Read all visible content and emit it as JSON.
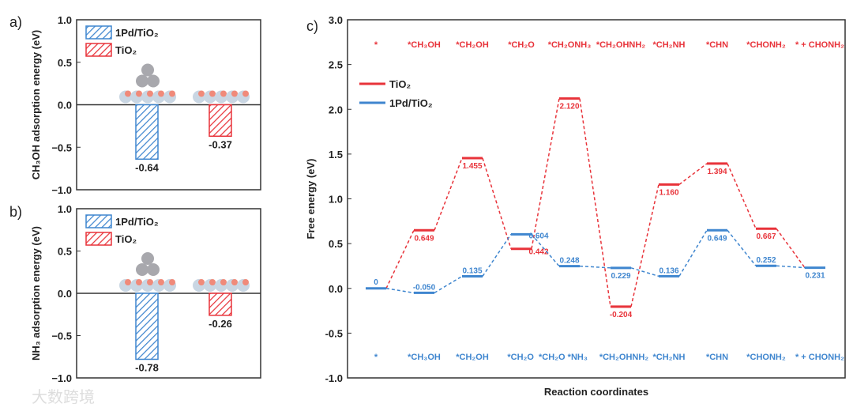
{
  "chart_data": [
    {
      "type": "bar",
      "panel": "a)",
      "ylabel": "CH₃OH adsorption energy (eV)",
      "ylim": [
        -1.0,
        1.0
      ],
      "yticks": [
        "1.0",
        "0.5",
        "0.0",
        "−0.5",
        "−1.0"
      ],
      "series": [
        {
          "name": "1Pd/TiO₂",
          "value": -0.64,
          "label": "-0.64",
          "color": "#3f86cf"
        },
        {
          "name": "TiO₂",
          "value": -0.37,
          "label": "-0.37",
          "color": "#e8333a"
        }
      ]
    },
    {
      "type": "bar",
      "panel": "b)",
      "ylabel": "NH₃ adsorption energy (eV)",
      "ylim": [
        -1.0,
        1.0
      ],
      "yticks": [
        "1.0",
        "0.5",
        "0.0",
        "−0.5",
        "−1.0"
      ],
      "series": [
        {
          "name": "1Pd/TiO₂",
          "value": -0.78,
          "label": "-0.78",
          "color": "#3f86cf"
        },
        {
          "name": "TiO₂",
          "value": -0.26,
          "label": "-0.26",
          "color": "#e8333a"
        }
      ]
    },
    {
      "type": "line",
      "panel": "c)",
      "xlabel": "Reaction coordinates",
      "ylabel": "Free energy (eV)",
      "ylim": [
        -1.0,
        3.0
      ],
      "yticks": [
        "3.0",
        "2.5",
        "2.0",
        "1.5",
        "1.0",
        "0.5",
        "0.0",
        "-0.5",
        "-1.0"
      ],
      "legend": [
        "TiO₂",
        "1Pd/TiO₂"
      ],
      "legend_position": "top-left",
      "top_labels": [
        "*",
        "*CH₃OH",
        "*CH₂OH",
        "*CH₂O",
        "*CH₂ONH₃",
        "*CH₂OHNH₂",
        "*CH₂NH",
        "*CHN",
        "*CHONH₂",
        "* + CHONH₂"
      ],
      "bottom_labels": [
        "*",
        "*CH₃OH",
        "*CH₂OH",
        "*CH₂O",
        "*CH₂O *NH₃",
        "*CH₂OHNH₂",
        "*CH₂NH",
        "*CHN",
        "*CHONH₂",
        "* + CHONH₂"
      ],
      "series": [
        {
          "name": "TiO₂",
          "color": "#e8333a",
          "values": [
            0,
            0.649,
            1.455,
            0.442,
            2.12,
            -0.204,
            1.16,
            1.394,
            0.667,
            0.231
          ],
          "labels": [
            "0",
            "0.649",
            "1.455",
            "0.442",
            "2.120",
            "-0.204",
            "1.160",
            "1.394",
            "0.667",
            "0.231"
          ]
        },
        {
          "name": "1Pd/TiO₂",
          "color": "#3f86cf",
          "values": [
            0,
            -0.05,
            0.135,
            0.604,
            0.248,
            0.229,
            0.136,
            0.649,
            0.252,
            0.231
          ],
          "labels": [
            "0",
            "-0.050",
            "0.135",
            "0.604",
            "0.248",
            "0.229",
            "0.136",
            "0.649",
            "0.252",
            "0.231"
          ]
        }
      ]
    }
  ],
  "watermark": "大数跨境"
}
